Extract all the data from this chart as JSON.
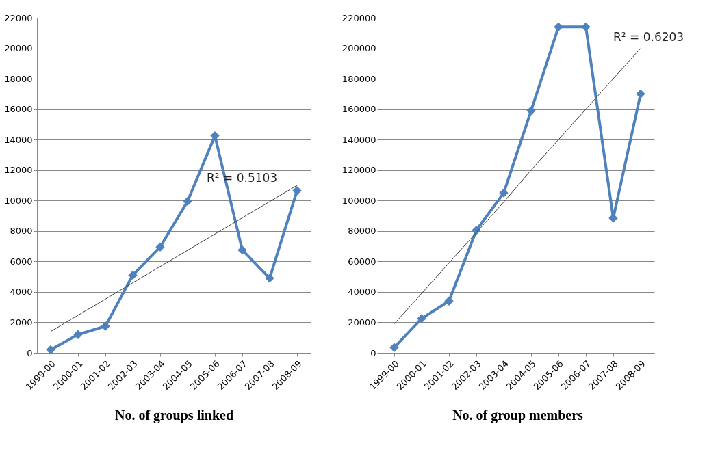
{
  "chart_data": [
    {
      "type": "line",
      "xlabel": "No. of groups linked",
      "categories": [
        "1999-00",
        "2000-01",
        "2001-02",
        "2002-03",
        "2003-04",
        "2004-05",
        "2005-06",
        "2006-07",
        "2007-08",
        "2008-09"
      ],
      "series": [
        {
          "color": "#4f81bd",
          "marker": "diamond",
          "line_style": "solid",
          "values": [
            200,
            1200,
            1750,
            5100,
            6950,
            9950,
            14250,
            6750,
            4900,
            10650
          ]
        },
        {
          "type": "line",
          "color": "#404040",
          "marker": "none",
          "line_style": "solid",
          "values": [
            1400,
            2470,
            3530,
            4600,
            5670,
            6730,
            7800,
            8870,
            9930,
            11000
          ]
        }
      ],
      "annotations": [
        "R² = 0.5103"
      ],
      "ylim": [
        0,
        22000
      ],
      "yticks": [
        0,
        2000,
        4000,
        6000,
        8000,
        10000,
        12000,
        14000,
        16000,
        18000,
        20000,
        22000
      ],
      "grid": "y",
      "legend": false
    },
    {
      "type": "line",
      "xlabel": "No. of group members",
      "categories": [
        "1999-00",
        "2000-01",
        "2001-02",
        "2002-03",
        "2003-04",
        "2004-05",
        "2005-06",
        "2006-07",
        "2007-08",
        "2008-09"
      ],
      "series": [
        {
          "color": "#4f81bd",
          "marker": "diamond",
          "line_style": "solid",
          "values": [
            3500,
            22500,
            34000,
            80500,
            105000,
            159000,
            214000,
            214000,
            88500,
            170000
          ]
        },
        {
          "type": "line",
          "color": "#404040",
          "marker": "none",
          "line_style": "solid",
          "values": [
            19000,
            39000,
            59000,
            79000,
            99000,
            120000,
            140000,
            160000,
            180000,
            200000
          ]
        }
      ],
      "annotations": [
        "R² = 0.6203"
      ],
      "ylim": [
        0,
        220000
      ],
      "yticks": [
        0,
        20000,
        40000,
        60000,
        80000,
        100000,
        120000,
        140000,
        160000,
        180000,
        200000,
        220000
      ],
      "grid": "y",
      "legend": false
    }
  ]
}
